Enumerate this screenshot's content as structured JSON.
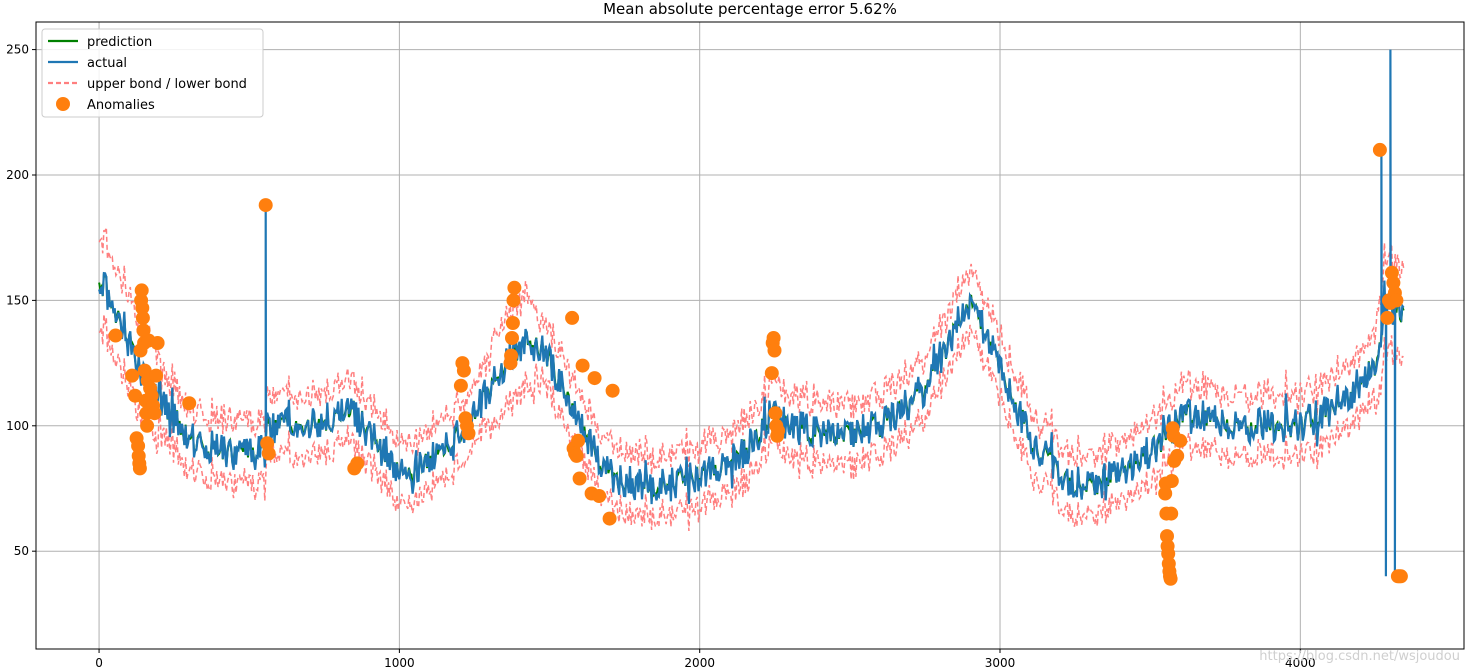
{
  "chart_data": {
    "type": "line",
    "title": "Mean absolute percentage error 5.62%",
    "xlabel": "",
    "ylabel": "",
    "xlim": [
      -210,
      4545
    ],
    "ylim": [
      11,
      261
    ],
    "xticks": [
      0,
      1000,
      2000,
      3000,
      4000
    ],
    "yticks": [
      50,
      100,
      150,
      200,
      250
    ],
    "grid": true,
    "legend_position": "top-left",
    "colors": {
      "prediction": "#008000",
      "actual": "#1f77b4",
      "bounds": "#ff7f7f",
      "anomalies": "#ff7f0e"
    },
    "legend": [
      "prediction",
      "actual",
      "upper bond / lower bond",
      "Anomalies"
    ],
    "baseline_trend": {
      "x": [
        0,
        150,
        300,
        450,
        555,
        560,
        650,
        850,
        1000,
        1150,
        1200,
        1350,
        1450,
        1550,
        1650,
        1700,
        1850,
        2000,
        2150,
        2240,
        2300,
        2450,
        2600,
        2750,
        2900,
        3000,
        3100,
        3200,
        3300,
        3450,
        3550,
        3600,
        3800,
        3900,
        4000,
        4150,
        4250,
        4280,
        4300,
        4345
      ],
      "y": [
        160,
        120,
        95,
        88,
        90,
        100,
        100,
        105,
        80,
        90,
        95,
        125,
        135,
        115,
        90,
        80,
        75,
        80,
        90,
        105,
        100,
        95,
        100,
        115,
        150,
        125,
        95,
        80,
        75,
        85,
        95,
        105,
        100,
        100,
        100,
        110,
        125,
        145,
        150,
        140
      ]
    },
    "noise_amplitude": 7,
    "band_halfwidth": 12,
    "actual_spikes": [
      {
        "x": 555,
        "y": 188
      },
      {
        "x": 4270,
        "y": 210
      },
      {
        "x": 4285,
        "y": 40
      },
      {
        "x": 4300,
        "y": 250
      },
      {
        "x": 4315,
        "y": 40
      }
    ],
    "anomalies": {
      "x": [
        55,
        110,
        120,
        125,
        130,
        132,
        134,
        136,
        138,
        140,
        142,
        144,
        146,
        148,
        150,
        152,
        155,
        158,
        160,
        162,
        165,
        170,
        175,
        180,
        185,
        190,
        195,
        300,
        555,
        560,
        565,
        850,
        860,
        1205,
        1210,
        1215,
        1220,
        1225,
        1230,
        1370,
        1372,
        1375,
        1378,
        1380,
        1383,
        1575,
        1580,
        1585,
        1590,
        1595,
        1600,
        1610,
        1640,
        1650,
        1665,
        1700,
        1710,
        2240,
        2243,
        2246,
        2249,
        2252,
        2255,
        2258,
        2261,
        3550,
        3552,
        3554,
        3556,
        3558,
        3560,
        3562,
        3564,
        3566,
        3568,
        3570,
        3572,
        3575,
        3578,
        3580,
        3590,
        3600,
        4265,
        4290,
        4295,
        4300,
        4305,
        4310,
        4315,
        4320,
        4325,
        4330,
        4335
      ],
      "y": [
        136,
        120,
        112,
        95,
        92,
        88,
        85,
        83,
        130,
        150,
        154,
        147,
        143,
        138,
        133,
        122,
        110,
        105,
        100,
        118,
        134,
        115,
        112,
        108,
        105,
        120,
        133,
        109,
        188,
        93,
        89,
        83,
        85,
        116,
        125,
        122,
        103,
        100,
        97,
        125,
        128,
        135,
        141,
        150,
        155,
        143,
        91,
        89,
        88,
        94,
        79,
        124,
        73,
        119,
        72,
        63,
        114,
        121,
        133,
        135,
        130,
        105,
        100,
        96,
        98,
        73,
        77,
        65,
        56,
        52,
        49,
        45,
        42,
        40,
        39,
        65,
        78,
        99,
        96,
        86,
        88,
        94,
        210,
        143,
        150,
        149,
        161,
        157,
        153,
        150,
        40,
        40,
        40
      ]
    }
  },
  "watermark_text": "https://blog.csdn.net/wsjoudou"
}
